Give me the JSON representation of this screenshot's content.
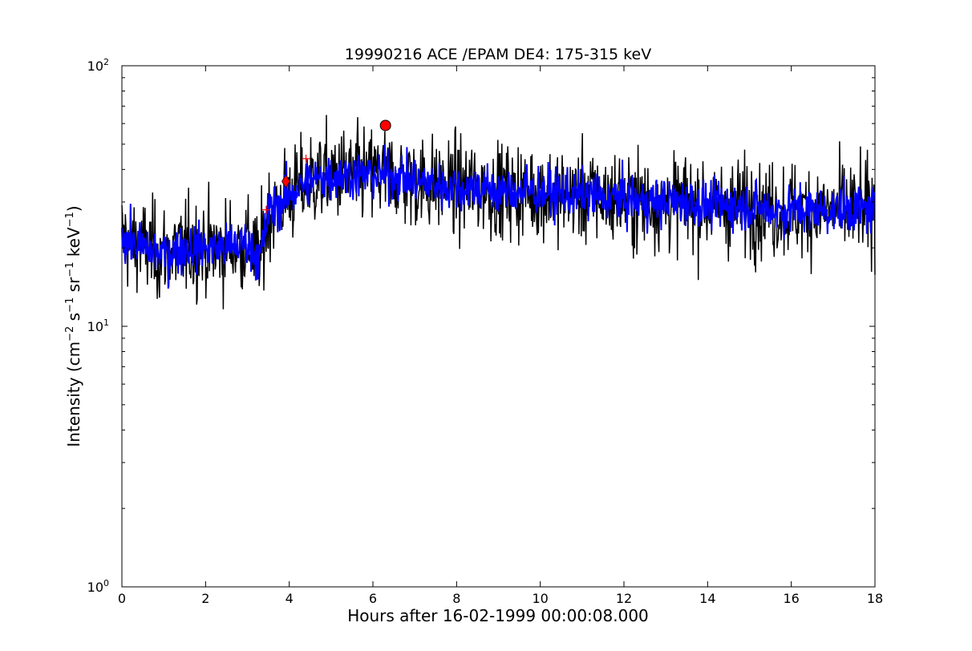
{
  "chart_data": {
    "type": "line",
    "title": "19990216 ACE /EPAM DE4: 175-315 keV",
    "xlabel": "Hours after 16-02-1999 00:00:08.000",
    "ylabel": {
      "base": "Intensity (cm",
      "sup1": "−2",
      "mid1": " s",
      "sup2": "−1",
      "mid2": " sr",
      "sup3": "−1",
      "mid3": " keV",
      "sup4": "−1",
      "end": ")"
    },
    "xlim": [
      0,
      18
    ],
    "ylim": [
      1,
      100
    ],
    "y_scale": "log",
    "grid": false,
    "x_ticks": [
      0,
      2,
      4,
      6,
      8,
      10,
      12,
      14,
      16,
      18
    ],
    "x_tick_labels": [
      "0",
      "2",
      "4",
      "6",
      "8",
      "10",
      "12",
      "14",
      "16",
      "18"
    ],
    "y_ticks": [
      1,
      10,
      100
    ],
    "y_tick_labels": [
      {
        "base": "10",
        "exp": "0"
      },
      {
        "base": "10",
        "exp": "1"
      },
      {
        "base": "10",
        "exp": "2"
      }
    ],
    "series": [
      {
        "style": "raw",
        "color": "#000000",
        "x": [
          0.0,
          0.5,
          1.0,
          1.5,
          2.0,
          2.5,
          3.0,
          3.3,
          3.5,
          4.0,
          4.5,
          5.0,
          5.5,
          6.0,
          6.5,
          7.0,
          7.5,
          8.0,
          8.5,
          9.0,
          9.5,
          10.0,
          10.5,
          11.0,
          11.5,
          12.0,
          12.5,
          13.0,
          13.5,
          14.0,
          14.5,
          15.0,
          15.5,
          16.0,
          16.5,
          17.0,
          17.5,
          18.0
        ],
        "y": [
          22,
          20,
          19,
          20,
          20,
          20,
          21,
          18,
          27,
          32,
          36,
          38,
          38,
          38,
          38,
          36,
          35,
          34,
          34,
          33,
          33,
          33,
          32,
          32,
          31,
          31,
          30,
          30,
          30,
          29,
          29,
          29,
          28,
          28,
          28,
          28,
          28,
          28
        ]
      },
      {
        "style": "smoothed",
        "color": "#0000ff",
        "x": [
          0.0,
          0.5,
          1.0,
          1.5,
          2.0,
          2.5,
          3.0,
          3.3,
          3.5,
          4.0,
          4.5,
          5.0,
          5.5,
          6.0,
          6.5,
          7.0,
          7.5,
          8.0,
          8.5,
          9.0,
          9.5,
          10.0,
          10.5,
          11.0,
          11.5,
          12.0,
          12.5,
          13.0,
          13.5,
          14.0,
          14.5,
          15.0,
          15.5,
          16.0,
          16.5,
          17.0,
          17.5,
          18.0
        ],
        "y": [
          22,
          20,
          19,
          20,
          20,
          20,
          21,
          18,
          27,
          32,
          36,
          38,
          38,
          38,
          38,
          36,
          35,
          34,
          34,
          33,
          33,
          33,
          32,
          32,
          31,
          31,
          30,
          30,
          30,
          29,
          29,
          29,
          28,
          28,
          28,
          28,
          28,
          28
        ]
      }
    ],
    "markers": [
      {
        "shape": "plus",
        "x": 3.45,
        "y": 28,
        "color": "#ff0000"
      },
      {
        "shape": "diamond",
        "x": 3.92,
        "y": 36,
        "color": "#ff0000"
      },
      {
        "shape": "plus",
        "x": 4.4,
        "y": 44,
        "color": "#ff0000"
      },
      {
        "shape": "circle",
        "x": 6.3,
        "y": 59,
        "color": "#ff0000"
      }
    ]
  }
}
